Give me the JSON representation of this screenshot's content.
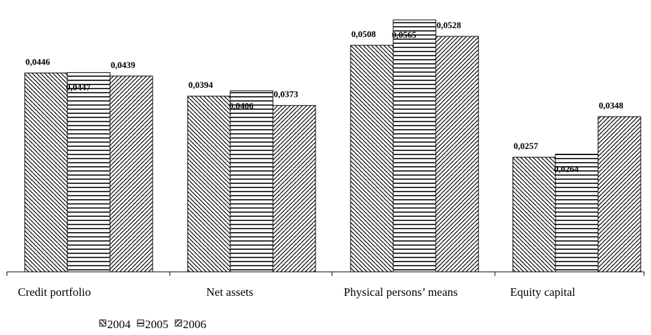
{
  "chart_data": {
    "type": "bar",
    "title": "",
    "xlabel": "",
    "ylabel": "",
    "ylim": [
      0,
      0.0585
    ],
    "grid": false,
    "legend_position": "bottom-left",
    "categories": [
      "Credit portfolio",
      "Net assets",
      "Physical persons’ means",
      "Equity capital"
    ],
    "series": [
      {
        "name": "2004",
        "pattern": "diagonal-back",
        "values": [
          0.0446,
          0.0394,
          0.0508,
          0.0257
        ],
        "labels": [
          "0,0446",
          "0,0394",
          "0,0508",
          "0,0257"
        ]
      },
      {
        "name": "2005",
        "pattern": "horizontal",
        "values": [
          0.0447,
          0.0406,
          0.0565,
          0.0264
        ],
        "labels": [
          "0,0447",
          "0,0406",
          "0,0565",
          "0,0264"
        ]
      },
      {
        "name": "2006",
        "pattern": "diagonal-forward",
        "values": [
          0.0439,
          0.0373,
          0.0528,
          0.0348
        ],
        "labels": [
          "0,0439",
          "0,0373",
          "0,0528",
          "0,0348"
        ]
      }
    ],
    "colors": {
      "stroke": "#000000",
      "background": "#ffffff"
    }
  }
}
